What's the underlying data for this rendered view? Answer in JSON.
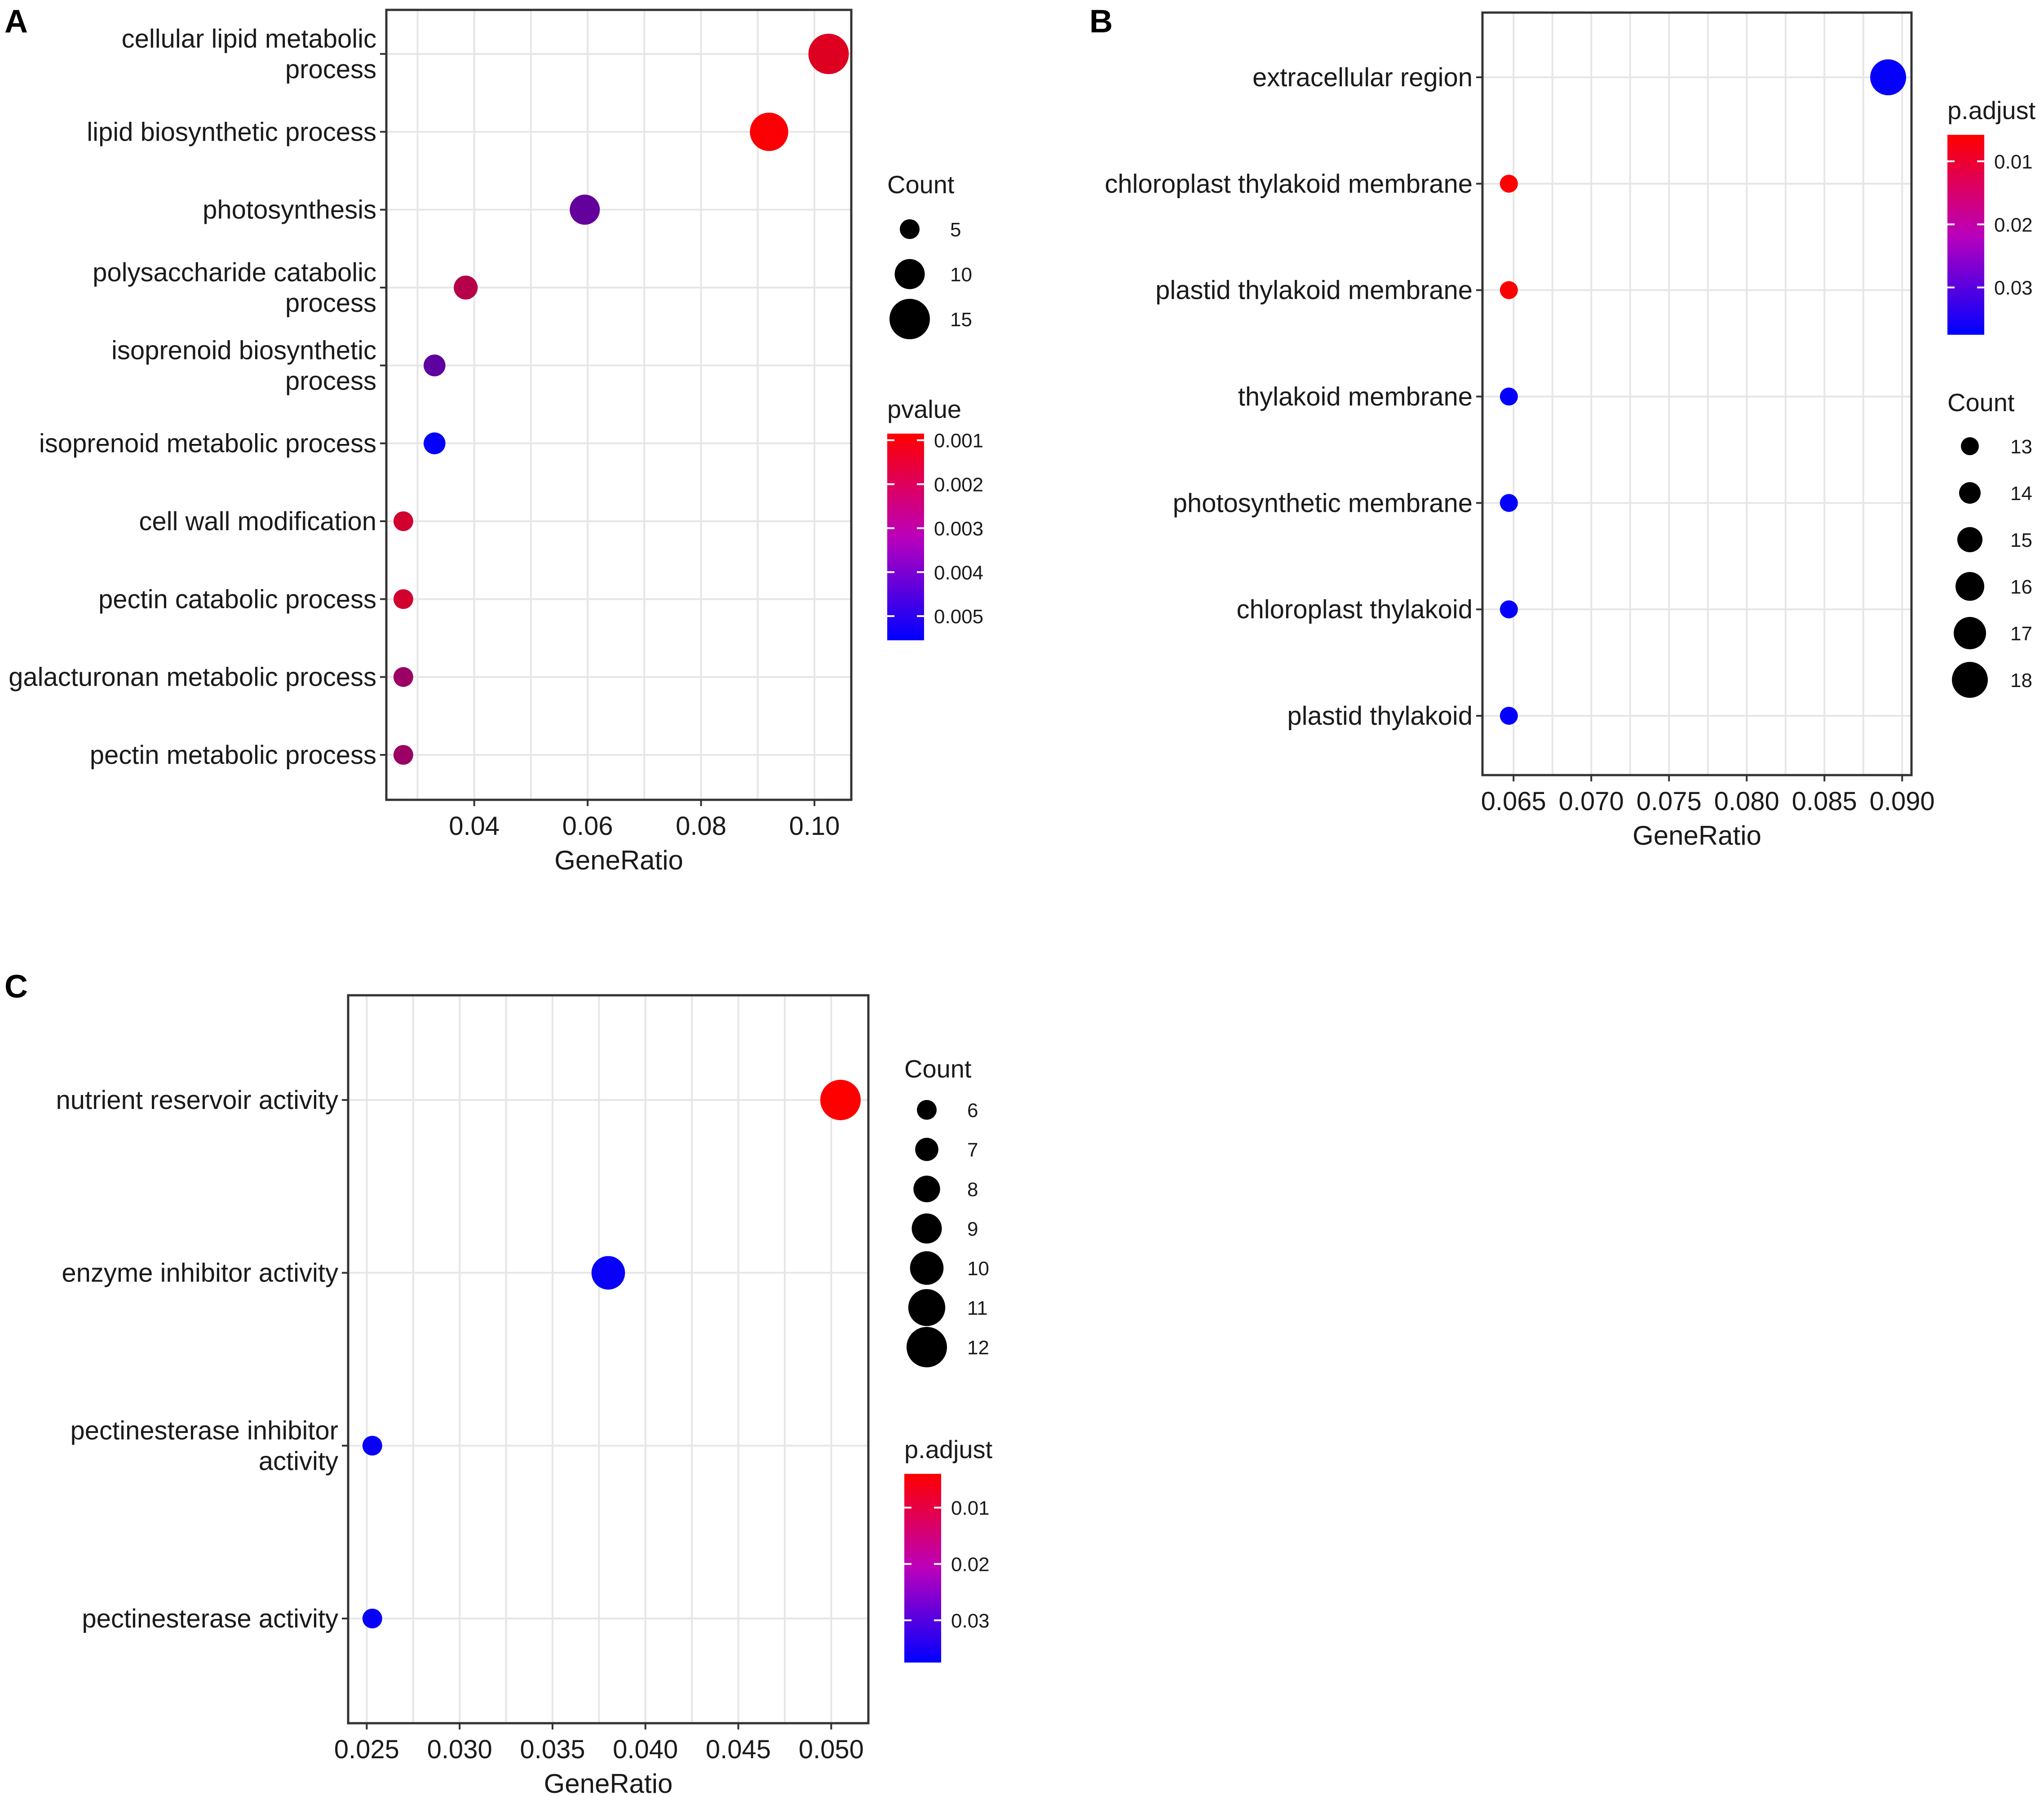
{
  "colors": {
    "low": "#0000ff",
    "high": "#ff0000"
  },
  "chart_data": [
    {
      "panel": "A",
      "type": "scatter",
      "xlabel": "GeneRatio",
      "xticks": [
        "0.04",
        "0.06",
        "0.08",
        "0.10"
      ],
      "xtick_values": [
        0.04,
        0.06,
        0.08,
        0.1
      ],
      "xlim": [
        0.0245,
        0.1065
      ],
      "categories": [
        {
          "lines": [
            "cellular lipid metabolic",
            "process"
          ],
          "x": 0.1025,
          "count": 15,
          "color": 0.00145
        },
        {
          "lines": [
            "lipid biosynthetic process"
          ],
          "x": 0.092,
          "count": 14,
          "color": 0.00095
        },
        {
          "lines": [
            "photosynthesis"
          ],
          "x": 0.0595,
          "count": 10,
          "color": 0.0037
        },
        {
          "lines": [
            "polysaccharide catabolic",
            "process"
          ],
          "x": 0.0385,
          "count": 7,
          "color": 0.0022
        },
        {
          "lines": [
            "isoprenoid biosynthetic",
            "process"
          ],
          "x": 0.033,
          "count": 6,
          "color": 0.0038
        },
        {
          "lines": [
            "isoprenoid metabolic process"
          ],
          "x": 0.033,
          "count": 6,
          "color": 0.00545
        },
        {
          "lines": [
            "cell wall modification"
          ],
          "x": 0.0275,
          "count": 5,
          "color": 0.0017
        },
        {
          "lines": [
            "pectin catabolic process"
          ],
          "x": 0.0275,
          "count": 5,
          "color": 0.0017
        },
        {
          "lines": [
            "galacturonan metabolic process"
          ],
          "x": 0.0275,
          "count": 5,
          "color": 0.0027
        },
        {
          "lines": [
            "pectin metabolic process"
          ],
          "x": 0.0275,
          "count": 5,
          "color": 0.0027
        }
      ],
      "legend_order": [
        "size",
        "color"
      ],
      "size_legend": {
        "title": "Count",
        "values": [
          5,
          10,
          15
        ],
        "labels": [
          "5",
          "10",
          "15"
        ]
      },
      "color_legend": {
        "title": "pvalue",
        "range": [
          0.00085,
          0.00555
        ],
        "ticks": [
          0.001,
          0.002,
          0.003,
          0.004,
          0.005
        ],
        "labels": [
          "0.001",
          "0.002",
          "0.003",
          "0.004",
          "0.005"
        ]
      }
    },
    {
      "panel": "B",
      "type": "scatter",
      "xlabel": "GeneRatio",
      "xticks": [
        "0.065",
        "0.070",
        "0.075",
        "0.080",
        "0.085",
        "0.090"
      ],
      "xtick_values": [
        0.065,
        0.07,
        0.075,
        0.08,
        0.085,
        0.09
      ],
      "xlim": [
        0.063,
        0.0906
      ],
      "categories": [
        {
          "lines": [
            "extracellular region"
          ],
          "x": 0.0891,
          "count": 18,
          "color": 0.037
        },
        {
          "lines": [
            "chloroplast thylakoid membrane"
          ],
          "x": 0.0647,
          "count": 13,
          "color": 0.006
        },
        {
          "lines": [
            "plastid thylakoid membrane"
          ],
          "x": 0.0647,
          "count": 13,
          "color": 0.006
        },
        {
          "lines": [
            "thylakoid membrane"
          ],
          "x": 0.0647,
          "count": 13,
          "color": 0.037
        },
        {
          "lines": [
            "photosynthetic membrane"
          ],
          "x": 0.0647,
          "count": 13,
          "color": 0.037
        },
        {
          "lines": [
            "chloroplast thylakoid"
          ],
          "x": 0.0647,
          "count": 13,
          "color": 0.037
        },
        {
          "lines": [
            "plastid thylakoid"
          ],
          "x": 0.0647,
          "count": 13,
          "color": 0.037
        }
      ],
      "legend_order": [
        "color",
        "size"
      ],
      "color_legend": {
        "title": "p.adjust",
        "range": [
          0.0058,
          0.0375
        ],
        "ticks": [
          0.01,
          0.02,
          0.03
        ],
        "labels": [
          "0.01",
          "0.02",
          "0.03"
        ]
      },
      "size_legend": {
        "title": "Count",
        "values": [
          13,
          14,
          15,
          16,
          17,
          18
        ],
        "labels": [
          "13",
          "14",
          "15",
          "16",
          "17",
          "18"
        ]
      }
    },
    {
      "panel": "C",
      "type": "scatter",
      "xlabel": "GeneRatio",
      "xticks": [
        "0.025",
        "0.030",
        "0.035",
        "0.040",
        "0.045",
        "0.050"
      ],
      "xtick_values": [
        0.025,
        0.03,
        0.035,
        0.04,
        0.045,
        0.05
      ],
      "xlim": [
        0.024,
        0.052
      ],
      "categories": [
        {
          "lines": [
            "nutrient reservoir activity"
          ],
          "x": 0.0505,
          "count": 12,
          "color": 0.004
        },
        {
          "lines": [
            "enzyme inhibitor activity"
          ],
          "x": 0.038,
          "count": 10,
          "color": 0.0365
        },
        {
          "lines": [
            "pectinesterase inhibitor",
            "activity"
          ],
          "x": 0.0253,
          "count": 6,
          "color": 0.0365
        },
        {
          "lines": [
            "pectinesterase activity"
          ],
          "x": 0.0253,
          "count": 6,
          "color": 0.0365
        }
      ],
      "legend_order": [
        "size",
        "color"
      ],
      "size_legend": {
        "title": "Count",
        "values": [
          6,
          7,
          8,
          9,
          10,
          11,
          12
        ],
        "labels": [
          "6",
          "7",
          "8",
          "9",
          "10",
          "11",
          "12"
        ]
      },
      "color_legend": {
        "title": "p.adjust",
        "range": [
          0.004,
          0.0375
        ],
        "ticks": [
          0.01,
          0.02,
          0.03
        ],
        "labels": [
          "0.01",
          "0.02",
          "0.03"
        ]
      }
    }
  ]
}
